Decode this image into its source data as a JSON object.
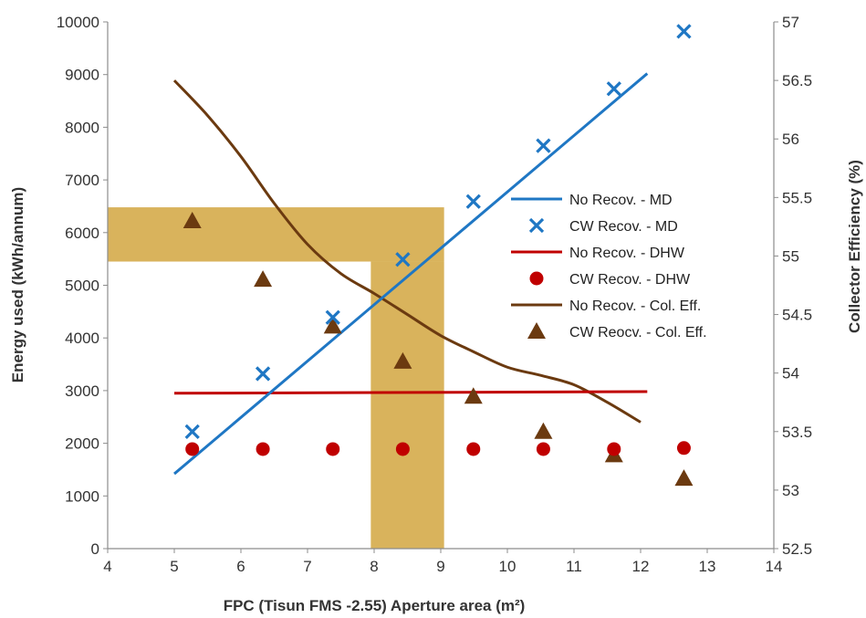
{
  "chart_data": {
    "type": "line",
    "title": "",
    "xlabel": "FPC (Tisun FMS -2.55) Aperture area (m²)",
    "ylabel": "Energy used (kWh/annum)",
    "y2label": "Collector Efficiency (%)",
    "xlim": [
      4,
      14
    ],
    "ylim": [
      0,
      10000
    ],
    "y2lim": [
      52.5,
      57
    ],
    "xticks": [
      "4",
      "5",
      "6",
      "7",
      "8",
      "9",
      "10",
      "11",
      "12",
      "13",
      "14"
    ],
    "yticks": [
      "0",
      "1000",
      "2000",
      "3000",
      "4000",
      "5000",
      "6000",
      "7000",
      "8000",
      "9000",
      "10000"
    ],
    "y2ticks": [
      "52.5",
      "53",
      "53.5",
      "54",
      "54.5",
      "55",
      "55.5",
      "56",
      "56.5",
      "57"
    ],
    "grid": false,
    "legend_position": "center-right",
    "highlight": {
      "color": "#D9B35C",
      "vertical_band_x": [
        7.95,
        9.05
      ],
      "horizontal_band_y": [
        5450,
        6480
      ],
      "horizontal_band_x_end": 9.05
    },
    "series": [
      {
        "name": "No Recov. -  MD",
        "kind": "line",
        "axis": "left",
        "color": "#1F77C4",
        "x": [
          5.0,
          12.1
        ],
        "y": [
          1420,
          9020
        ]
      },
      {
        "name": "CW Recov. - MD",
        "kind": "marker",
        "marker": "x",
        "axis": "left",
        "color": "#1F77C4",
        "x": [
          5.27,
          6.33,
          7.38,
          8.43,
          9.49,
          10.54,
          11.6,
          12.65
        ],
        "y": [
          2220,
          3320,
          4390,
          5490,
          6590,
          7650,
          8730,
          9820
        ]
      },
      {
        "name": "No Recov. - DHW",
        "kind": "line",
        "axis": "left",
        "color": "#C00000",
        "x": [
          5.0,
          12.1
        ],
        "y": [
          2950,
          2980
        ]
      },
      {
        "name": "CW Recov. - DHW",
        "kind": "marker",
        "marker": "circle",
        "axis": "left",
        "color": "#C00000",
        "x": [
          5.27,
          6.33,
          7.38,
          8.43,
          9.49,
          10.54,
          11.6,
          12.65
        ],
        "y": [
          1890,
          1890,
          1890,
          1890,
          1890,
          1890,
          1890,
          1910
        ]
      },
      {
        "name": "No Recov. - Col. Eff.",
        "kind": "line",
        "axis": "right",
        "color": "#6B3A10",
        "x": [
          5.0,
          5.5,
          6.0,
          6.5,
          7.0,
          7.5,
          8.0,
          8.5,
          9.0,
          9.5,
          10.0,
          10.5,
          11.0,
          11.5,
          12.0
        ],
        "y": [
          56.5,
          56.2,
          55.85,
          55.45,
          55.1,
          54.85,
          54.68,
          54.5,
          54.32,
          54.18,
          54.05,
          53.98,
          53.9,
          53.75,
          53.58
        ]
      },
      {
        "name": "CW Reocv. - Col. Eff.",
        "kind": "marker",
        "marker": "triangle",
        "axis": "right",
        "color": "#6B3A10",
        "x": [
          5.27,
          6.33,
          7.38,
          8.43,
          9.49,
          10.54,
          11.6,
          12.65
        ],
        "y": [
          55.3,
          54.8,
          54.4,
          54.1,
          53.8,
          53.5,
          53.3,
          53.1
        ]
      }
    ]
  }
}
